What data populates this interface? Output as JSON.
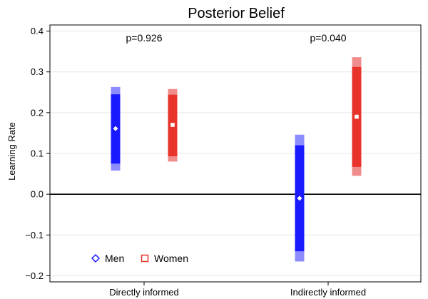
{
  "chart_data": {
    "type": "interval",
    "title": "Posterior Belief",
    "xlabel": "",
    "ylabel": "Learning Rate",
    "ylim": [
      -0.215,
      0.415
    ],
    "yticks": [
      -0.2,
      -0.1,
      0.0,
      0.1,
      0.2,
      0.3,
      0.4
    ],
    "ytick_labels": [
      "−0.2",
      "−0.1",
      "0.0",
      "0.1",
      "0.2",
      "0.3",
      "0.4"
    ],
    "reference_line": 0.0,
    "grid": true,
    "legend_position": "bottom-left",
    "categories": [
      "Directly informed",
      "Indirectly informed"
    ],
    "annotations": [
      "p=0.926",
      "p=0.040"
    ],
    "series": [
      {
        "name": "Men",
        "marker": "diamond",
        "color": "#1a1aff",
        "light_color": "#8c8cff",
        "estimate": [
          0.161,
          -0.01
        ],
        "ci_inner": [
          [
            0.075,
            0.245
          ],
          [
            -0.14,
            0.12
          ]
        ],
        "ci_outer": [
          [
            0.058,
            0.263
          ],
          [
            -0.165,
            0.146
          ]
        ]
      },
      {
        "name": "Women",
        "marker": "square",
        "color": "#e8332a",
        "light_color": "#f08c8c",
        "estimate": [
          0.17,
          0.19
        ],
        "ci_inner": [
          [
            0.093,
            0.244
          ],
          [
            0.067,
            0.312
          ]
        ],
        "ci_outer": [
          [
            0.08,
            0.258
          ],
          [
            0.045,
            0.336
          ]
        ]
      }
    ]
  }
}
